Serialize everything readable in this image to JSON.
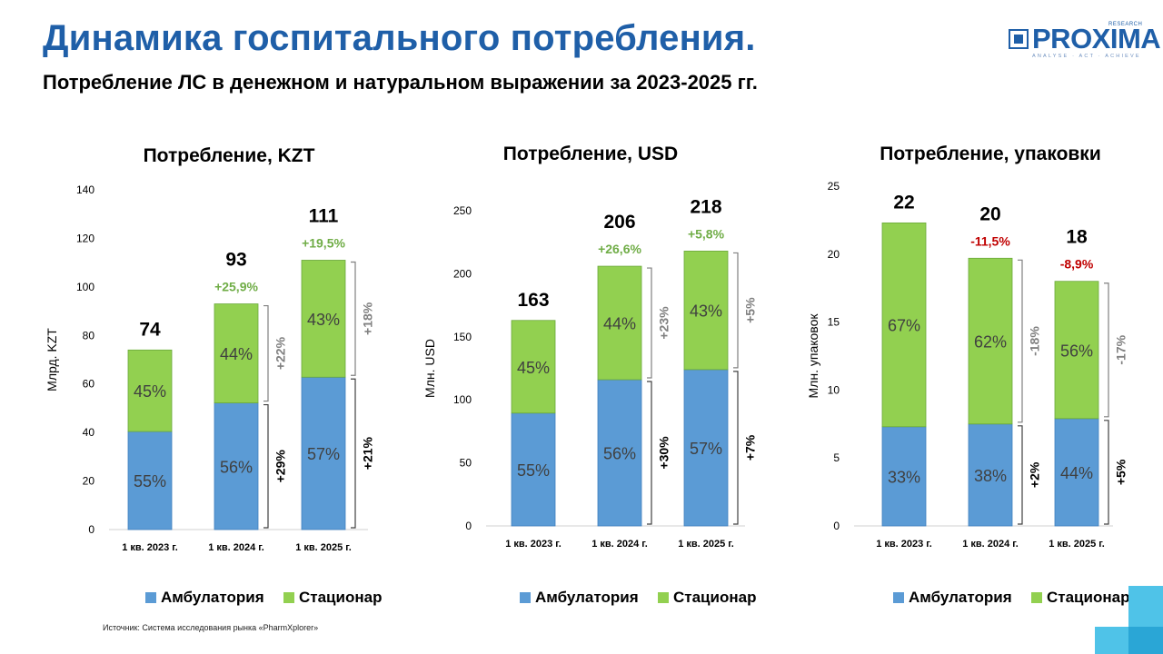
{
  "header": {
    "title": "Динамика госпитального потребления.",
    "subtitle": "Потребление ЛС в денежном и натуральном выражении за 2023-2025 гг."
  },
  "logo": {
    "word": "PROXIMA",
    "research": "RESEARCH",
    "tagline": "ANALYSE · ACT · ACHIEVE"
  },
  "source": "Источник: Система исследования рынка «PharmXplorer»",
  "colors": {
    "title": "#1f5fa8",
    "ambulatoria": "#5b9bd5",
    "stacionar": "#92d050",
    "growth_green": "#70ad47",
    "growth_red": "#c00000",
    "bracket_gray": "#808080",
    "corner_accent": "#4fc3e8"
  },
  "chart_data": [
    {
      "type": "bar",
      "stacked": true,
      "title": "Потребление, KZT",
      "ylabel": "Млрд. KZT",
      "ylim": [
        0,
        140
      ],
      "yticks": [
        0,
        20,
        40,
        60,
        80,
        100,
        120,
        140
      ],
      "categories": [
        "1 кв. 2023 г.",
        "1 кв. 2024 г.",
        "1 кв. 2025 г."
      ],
      "series": [
        {
          "name": "Амбулатория",
          "values": [
            40.4,
            52.2,
            62.8
          ],
          "pct_labels": [
            "55%",
            "56%",
            "57%"
          ]
        },
        {
          "name": "Стационар",
          "values": [
            33.6,
            40.8,
            48.2
          ],
          "pct_labels": [
            "45%",
            "44%",
            "43%"
          ]
        }
      ],
      "totals": [
        "74",
        "93",
        "111"
      ],
      "growth": [
        "",
        "+25,9%",
        "+19,5%"
      ],
      "growth_color": [
        "",
        "green",
        "green"
      ],
      "segment_growth": [
        {
          "stacionar": "+22%",
          "ambulatoria": "+29%"
        },
        {
          "stacionar": "+18%",
          "ambulatoria": "+21%"
        }
      ],
      "legend": [
        "Амбулатория",
        "Стационар"
      ],
      "legend_position": "bottom"
    },
    {
      "type": "bar",
      "stacked": true,
      "title": "Потребление, USD",
      "ylabel": "Млн. USD",
      "ylim": [
        0,
        250
      ],
      "yticks": [
        0,
        50,
        100,
        150,
        200,
        250
      ],
      "categories": [
        "1 кв. 2023 г.",
        "1 кв. 2024 г.",
        "1 кв. 2025 г."
      ],
      "series": [
        {
          "name": "Амбулатория",
          "values": [
            89.5,
            116,
            124
          ],
          "pct_labels": [
            "55%",
            "56%",
            "57%"
          ]
        },
        {
          "name": "Стационар",
          "values": [
            73.5,
            90,
            94
          ],
          "pct_labels": [
            "45%",
            "44%",
            "43%"
          ]
        }
      ],
      "totals": [
        "163",
        "206",
        "218"
      ],
      "growth": [
        "",
        "+26,6%",
        "+5,8%"
      ],
      "growth_color": [
        "",
        "green",
        "green"
      ],
      "segment_growth": [
        {
          "stacionar": "+23%",
          "ambulatoria": "+30%"
        },
        {
          "stacionar": "+5%",
          "ambulatoria": "+7%"
        }
      ],
      "legend": [
        "Амбулатория",
        "Стационар"
      ],
      "legend_position": "bottom"
    },
    {
      "type": "bar",
      "stacked": true,
      "title": "Потребление, упаковки",
      "ylabel": "Млн. упаковок",
      "ylim": [
        0,
        25
      ],
      "yticks": [
        0,
        5,
        10,
        15,
        20,
        25
      ],
      "categories": [
        "1 кв. 2023 г.",
        "1 кв. 2024 г.",
        "1 кв. 2025 г."
      ],
      "series": [
        {
          "name": "Амбулатория",
          "values": [
            7.3,
            7.5,
            7.9
          ],
          "pct_labels": [
            "33%",
            "38%",
            "44%"
          ]
        },
        {
          "name": "Стационар",
          "values": [
            15.0,
            12.2,
            10.1
          ],
          "pct_labels": [
            "67%",
            "62%",
            "56%"
          ]
        }
      ],
      "totals": [
        "22",
        "20",
        "18"
      ],
      "growth": [
        "",
        "-11,5%",
        "-8,9%"
      ],
      "growth_color": [
        "",
        "red",
        "red"
      ],
      "segment_growth": [
        {
          "stacionar": "-18%",
          "ambulatoria": "+2%"
        },
        {
          "stacionar": "-17%",
          "ambulatoria": "+5%"
        }
      ],
      "legend": [
        "Амбулатория",
        "Стационар"
      ],
      "legend_position": "bottom"
    }
  ]
}
